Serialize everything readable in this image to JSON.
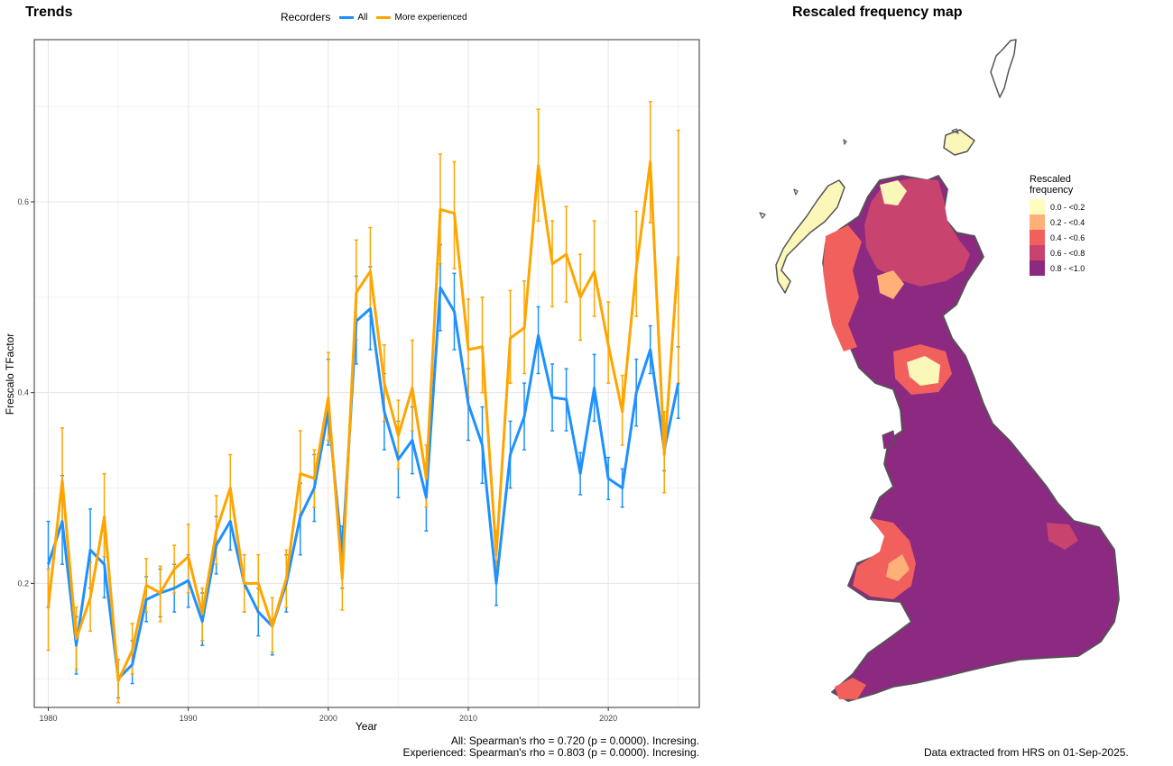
{
  "trends_title": "Trends",
  "map_title": "Rescaled frequency map",
  "legend": {
    "title": "Recorders",
    "items": [
      {
        "label": "All",
        "color": "#1E90FF"
      },
      {
        "label": "More experienced",
        "color": "#FFA500"
      }
    ]
  },
  "stats": {
    "all": "All: Spearman's rho = 0.720 (p = 0.0000). Incresing.",
    "experienced": "Experienced: Spearman's rho = 0.803 (p = 0.0000). Incresing."
  },
  "credit": "Data extracted from HRS on 01-Sep-2025.",
  "map_legend": {
    "title_line1": "Rescaled",
    "title_line2": "frequency",
    "bins": [
      {
        "label": "0.0 - <0.2",
        "color": "#FCFDBF"
      },
      {
        "label": "0.2 - <0.4",
        "color": "#FEB078"
      },
      {
        "label": "0.4 - <0.6",
        "color": "#F1605D"
      },
      {
        "label": "0.6 - <0.8",
        "color": "#C8446E"
      },
      {
        "label": "0.8 - <1.0",
        "color": "#8C2981"
      }
    ]
  },
  "chart_data": {
    "type": "line",
    "xlabel": "Year",
    "ylabel": "Frescalo TFactor",
    "xlim": [
      1979,
      2026.5
    ],
    "ylim": [
      0.07,
      0.77
    ],
    "xticks": [
      1980,
      1990,
      2000,
      2010,
      2020
    ],
    "yticks": [
      0.2,
      0.4,
      0.6
    ],
    "grid": true,
    "legend_position": "top",
    "x": [
      1980,
      1981,
      1982,
      1983,
      1984,
      1985,
      1986,
      1987,
      1988,
      1989,
      1990,
      1991,
      1992,
      1993,
      1994,
      1995,
      1996,
      1997,
      1998,
      1999,
      2000,
      2001,
      2002,
      2003,
      2004,
      2005,
      2006,
      2007,
      2008,
      2009,
      2010,
      2011,
      2012,
      2013,
      2014,
      2015,
      2016,
      2017,
      2018,
      2019,
      2020,
      2021,
      2022,
      2023,
      2024,
      2025
    ],
    "series": [
      {
        "name": "All",
        "color": "#1E90FF",
        "values": [
          0.22,
          0.265,
          0.135,
          0.235,
          0.22,
          0.1,
          0.115,
          0.183,
          0.19,
          0.195,
          0.203,
          0.16,
          0.24,
          0.265,
          0.2,
          0.17,
          0.155,
          0.2,
          0.27,
          0.3,
          0.38,
          0.23,
          0.475,
          0.488,
          0.38,
          0.33,
          0.35,
          0.29,
          0.51,
          0.485,
          0.388,
          0.345,
          0.2,
          0.335,
          0.375,
          0.46,
          0.395,
          0.393,
          0.315,
          0.405,
          0.31,
          0.3,
          0.4,
          0.445,
          0.34,
          0.41
        ],
        "lower": [
          0.175,
          0.22,
          0.105,
          0.195,
          0.185,
          0.08,
          0.095,
          0.16,
          0.165,
          0.17,
          0.175,
          0.135,
          0.21,
          0.235,
          0.17,
          0.145,
          0.125,
          0.17,
          0.23,
          0.265,
          0.345,
          0.195,
          0.43,
          0.445,
          0.34,
          0.29,
          0.315,
          0.255,
          0.465,
          0.445,
          0.35,
          0.305,
          0.177,
          0.3,
          0.34,
          0.42,
          0.36,
          0.36,
          0.293,
          0.37,
          0.288,
          0.28,
          0.365,
          0.42,
          0.318,
          0.373
        ],
        "upper": [
          0.265,
          0.313,
          0.165,
          0.278,
          0.255,
          0.12,
          0.14,
          0.207,
          0.215,
          0.22,
          0.23,
          0.19,
          0.27,
          0.295,
          0.23,
          0.195,
          0.185,
          0.23,
          0.305,
          0.335,
          0.435,
          0.26,
          0.522,
          0.532,
          0.42,
          0.37,
          0.385,
          0.325,
          0.555,
          0.525,
          0.425,
          0.385,
          0.223,
          0.37,
          0.41,
          0.49,
          0.43,
          0.425,
          0.337,
          0.44,
          0.332,
          0.32,
          0.435,
          0.47,
          0.362,
          0.448
        ]
      },
      {
        "name": "More experienced",
        "color": "#FFA500",
        "values": [
          0.175,
          0.308,
          0.142,
          0.185,
          0.27,
          0.098,
          0.13,
          0.198,
          0.19,
          0.215,
          0.228,
          0.168,
          0.255,
          0.3,
          0.2,
          0.2,
          0.155,
          0.205,
          0.315,
          0.31,
          0.395,
          0.205,
          0.505,
          0.527,
          0.41,
          0.355,
          0.405,
          0.31,
          0.592,
          0.588,
          0.445,
          0.448,
          0.23,
          0.457,
          0.468,
          0.638,
          0.535,
          0.545,
          0.5,
          0.527,
          0.45,
          0.38,
          0.53,
          0.642,
          0.335,
          0.543
        ],
        "lower": [
          0.13,
          0.26,
          0.11,
          0.15,
          0.228,
          0.075,
          0.105,
          0.17,
          0.16,
          0.19,
          0.19,
          0.14,
          0.22,
          0.265,
          0.17,
          0.17,
          0.128,
          0.175,
          0.272,
          0.28,
          0.35,
          0.172,
          0.455,
          0.48,
          0.37,
          0.32,
          0.36,
          0.28,
          0.535,
          0.53,
          0.395,
          0.4,
          0.205,
          0.41,
          0.42,
          0.58,
          0.49,
          0.495,
          0.455,
          0.48,
          0.41,
          0.345,
          0.48,
          0.578,
          0.295,
          0.41
        ],
        "upper": [
          0.215,
          0.363,
          0.175,
          0.222,
          0.315,
          0.12,
          0.158,
          0.226,
          0.218,
          0.24,
          0.262,
          0.195,
          0.292,
          0.335,
          0.23,
          0.23,
          0.185,
          0.235,
          0.36,
          0.34,
          0.442,
          0.238,
          0.56,
          0.573,
          0.45,
          0.392,
          0.455,
          0.345,
          0.65,
          0.642,
          0.498,
          0.5,
          0.255,
          0.507,
          0.517,
          0.697,
          0.58,
          0.595,
          0.545,
          0.58,
          0.495,
          0.418,
          0.59,
          0.705,
          0.38,
          0.675
        ]
      }
    ]
  }
}
